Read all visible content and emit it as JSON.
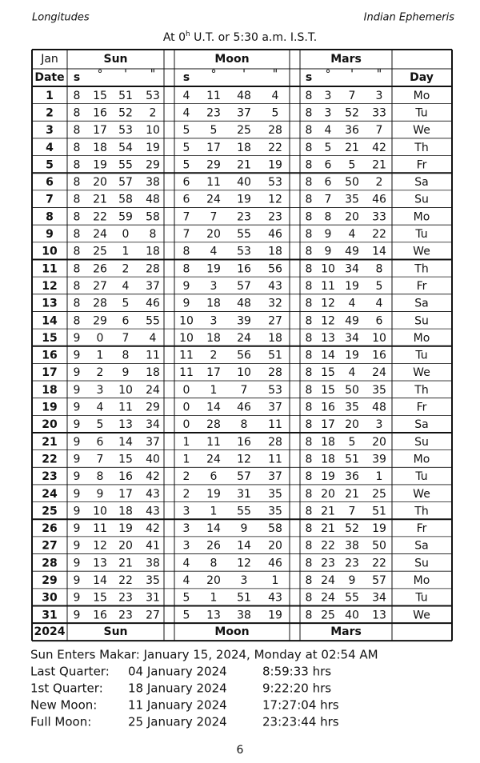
{
  "header": {
    "left": "Longitudes",
    "right": "Indian Ephemeris"
  },
  "subtitle": {
    "before": "At 0",
    "sup": "h",
    "after": " U.T. or 5:30 a.m. I.S.T."
  },
  "table": {
    "month": "Jan",
    "date_label": "Date",
    "day_label": "Day",
    "year": "2024",
    "planets": [
      "Sun",
      "Moon",
      "Mars"
    ],
    "units": [
      "s",
      "°",
      "'",
      "\""
    ],
    "rows": [
      [
        "1",
        "8",
        "15",
        "51",
        "53",
        "4",
        "11",
        "48",
        "4",
        "8",
        "3",
        "7",
        "3",
        "Mo"
      ],
      [
        "2",
        "8",
        "16",
        "52",
        "2",
        "4",
        "23",
        "37",
        "5",
        "8",
        "3",
        "52",
        "33",
        "Tu"
      ],
      [
        "3",
        "8",
        "17",
        "53",
        "10",
        "5",
        "5",
        "25",
        "28",
        "8",
        "4",
        "36",
        "7",
        "We"
      ],
      [
        "4",
        "8",
        "18",
        "54",
        "19",
        "5",
        "17",
        "18",
        "22",
        "8",
        "5",
        "21",
        "42",
        "Th"
      ],
      [
        "5",
        "8",
        "19",
        "55",
        "29",
        "5",
        "29",
        "21",
        "19",
        "8",
        "6",
        "5",
        "21",
        "Fr"
      ],
      [
        "6",
        "8",
        "20",
        "57",
        "38",
        "6",
        "11",
        "40",
        "53",
        "8",
        "6",
        "50",
        "2",
        "Sa"
      ],
      [
        "7",
        "8",
        "21",
        "58",
        "48",
        "6",
        "24",
        "19",
        "12",
        "8",
        "7",
        "35",
        "46",
        "Su"
      ],
      [
        "8",
        "8",
        "22",
        "59",
        "58",
        "7",
        "7",
        "23",
        "23",
        "8",
        "8",
        "20",
        "33",
        "Mo"
      ],
      [
        "9",
        "8",
        "24",
        "0",
        "8",
        "7",
        "20",
        "55",
        "46",
        "8",
        "9",
        "4",
        "22",
        "Tu"
      ],
      [
        "10",
        "8",
        "25",
        "1",
        "18",
        "8",
        "4",
        "53",
        "18",
        "8",
        "9",
        "49",
        "14",
        "We"
      ],
      [
        "11",
        "8",
        "26",
        "2",
        "28",
        "8",
        "19",
        "16",
        "56",
        "8",
        "10",
        "34",
        "8",
        "Th"
      ],
      [
        "12",
        "8",
        "27",
        "4",
        "37",
        "9",
        "3",
        "57",
        "43",
        "8",
        "11",
        "19",
        "5",
        "Fr"
      ],
      [
        "13",
        "8",
        "28",
        "5",
        "46",
        "9",
        "18",
        "48",
        "32",
        "8",
        "12",
        "4",
        "4",
        "Sa"
      ],
      [
        "14",
        "8",
        "29",
        "6",
        "55",
        "10",
        "3",
        "39",
        "27",
        "8",
        "12",
        "49",
        "6",
        "Su"
      ],
      [
        "15",
        "9",
        "0",
        "7",
        "4",
        "10",
        "18",
        "24",
        "18",
        "8",
        "13",
        "34",
        "10",
        "Mo"
      ],
      [
        "16",
        "9",
        "1",
        "8",
        "11",
        "11",
        "2",
        "56",
        "51",
        "8",
        "14",
        "19",
        "16",
        "Tu"
      ],
      [
        "17",
        "9",
        "2",
        "9",
        "18",
        "11",
        "17",
        "10",
        "28",
        "8",
        "15",
        "4",
        "24",
        "We"
      ],
      [
        "18",
        "9",
        "3",
        "10",
        "24",
        "0",
        "1",
        "7",
        "53",
        "8",
        "15",
        "50",
        "35",
        "Th"
      ],
      [
        "19",
        "9",
        "4",
        "11",
        "29",
        "0",
        "14",
        "46",
        "37",
        "8",
        "16",
        "35",
        "48",
        "Fr"
      ],
      [
        "20",
        "9",
        "5",
        "13",
        "34",
        "0",
        "28",
        "8",
        "11",
        "8",
        "17",
        "20",
        "3",
        "Sa"
      ],
      [
        "21",
        "9",
        "6",
        "14",
        "37",
        "1",
        "11",
        "16",
        "28",
        "8",
        "18",
        "5",
        "20",
        "Su"
      ],
      [
        "22",
        "9",
        "7",
        "15",
        "40",
        "1",
        "24",
        "12",
        "11",
        "8",
        "18",
        "51",
        "39",
        "Mo"
      ],
      [
        "23",
        "9",
        "8",
        "16",
        "42",
        "2",
        "6",
        "57",
        "37",
        "8",
        "19",
        "36",
        "1",
        "Tu"
      ],
      [
        "24",
        "9",
        "9",
        "17",
        "43",
        "2",
        "19",
        "31",
        "35",
        "8",
        "20",
        "21",
        "25",
        "We"
      ],
      [
        "25",
        "9",
        "10",
        "18",
        "43",
        "3",
        "1",
        "55",
        "35",
        "8",
        "21",
        "7",
        "51",
        "Th"
      ],
      [
        "26",
        "9",
        "11",
        "19",
        "42",
        "3",
        "14",
        "9",
        "58",
        "8",
        "21",
        "52",
        "19",
        "Fr"
      ],
      [
        "27",
        "9",
        "12",
        "20",
        "41",
        "3",
        "26",
        "14",
        "20",
        "8",
        "22",
        "38",
        "50",
        "Sa"
      ],
      [
        "28",
        "9",
        "13",
        "21",
        "38",
        "4",
        "8",
        "12",
        "46",
        "8",
        "23",
        "23",
        "22",
        "Su"
      ],
      [
        "29",
        "9",
        "14",
        "22",
        "35",
        "4",
        "20",
        "3",
        "1",
        "8",
        "24",
        "9",
        "57",
        "Mo"
      ],
      [
        "30",
        "9",
        "15",
        "23",
        "31",
        "5",
        "1",
        "51",
        "43",
        "8",
        "24",
        "55",
        "34",
        "Tu"
      ],
      [
        "31",
        "9",
        "16",
        "23",
        "27",
        "5",
        "13",
        "38",
        "19",
        "8",
        "25",
        "40",
        "13",
        "We"
      ]
    ]
  },
  "notes": {
    "sun_enters": "Sun Enters Makar: January 15, 2024, Monday at 02:54 AM",
    "phases": [
      [
        "Last Quarter:",
        "04 January 2024",
        "8:59:33 hrs"
      ],
      [
        "1st Quarter:",
        "18 January 2024",
        "9:22:20 hrs"
      ],
      [
        "New Moon:",
        "11 January 2024",
        "17:27:04 hrs"
      ],
      [
        "Full Moon:",
        "25 January 2024",
        "23:23:44 hrs"
      ]
    ]
  },
  "page_number": "6"
}
